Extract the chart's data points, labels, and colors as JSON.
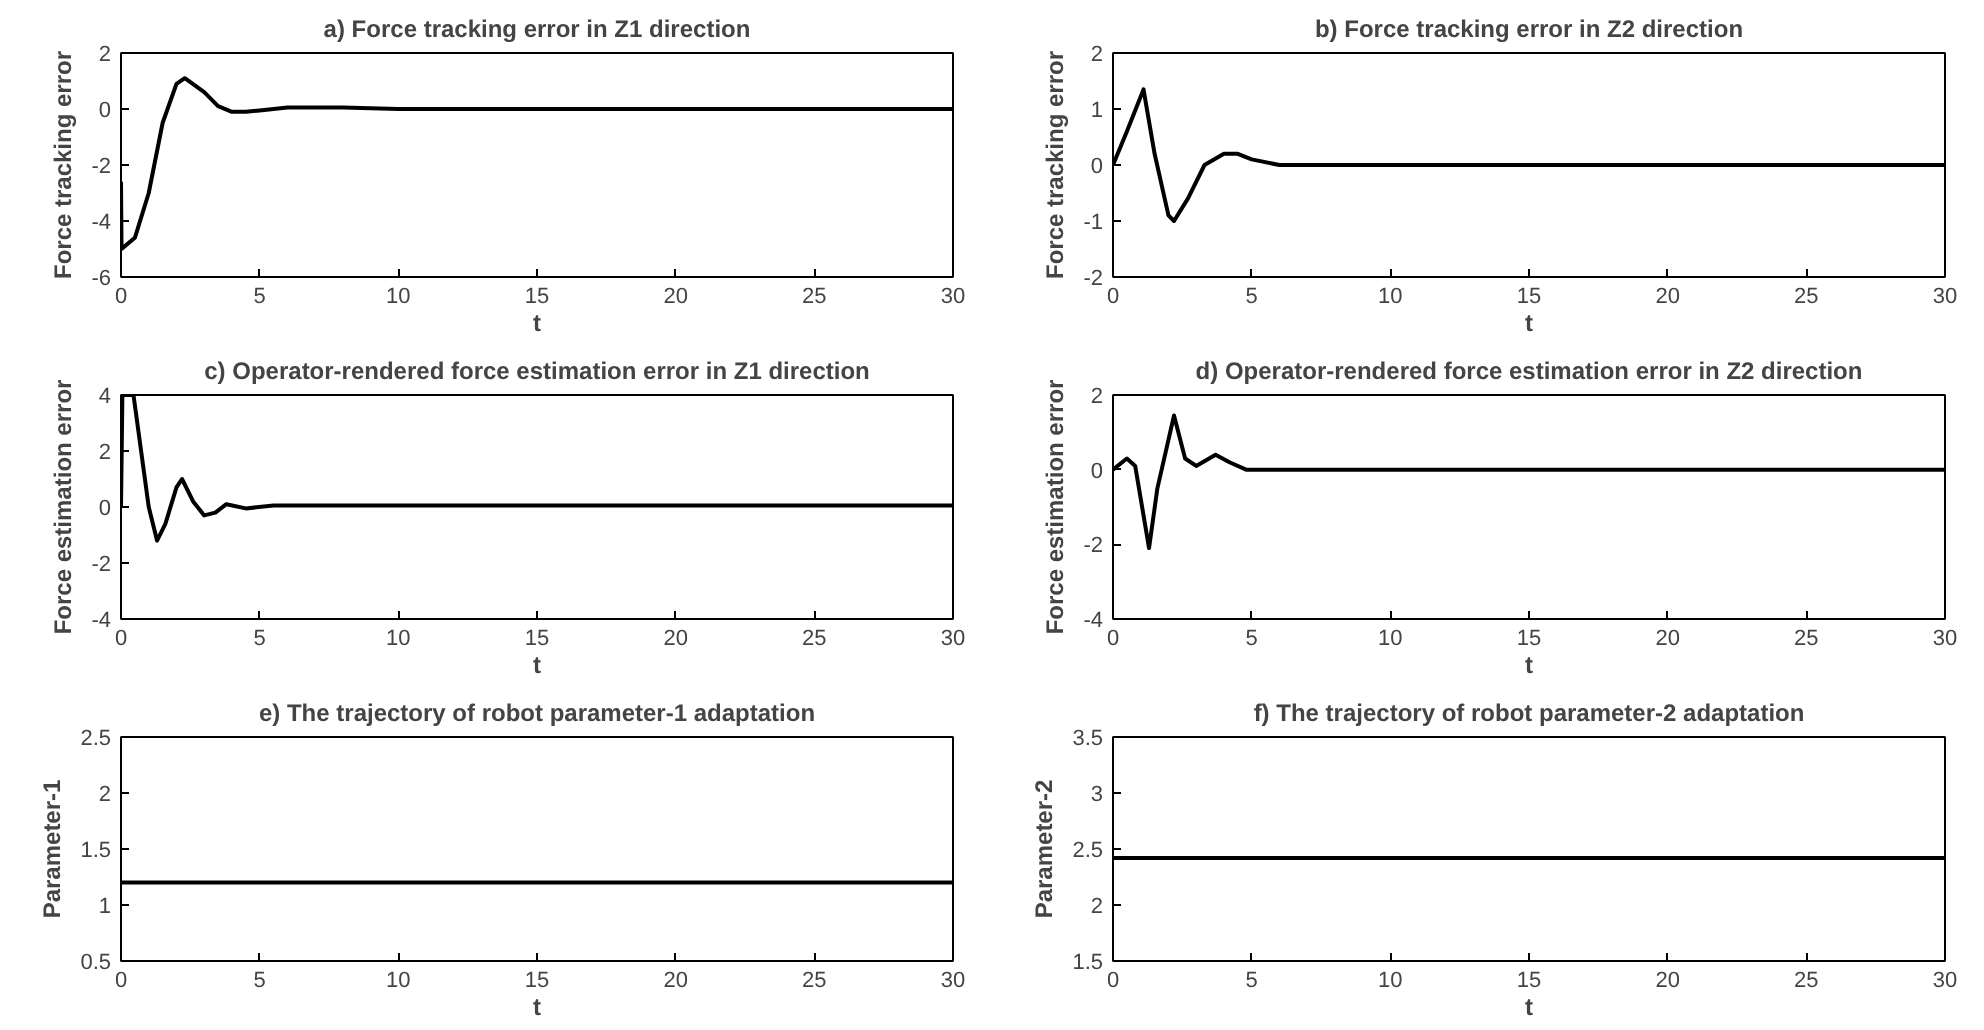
{
  "chart_data": [
    {
      "type": "line",
      "title": "a) Force tracking error in Z1 direction",
      "xlabel": "t",
      "ylabel": "Force tracking error",
      "xlim": [
        0,
        30
      ],
      "ylim": [
        -6,
        2
      ],
      "xticks": [
        0,
        5,
        10,
        15,
        20,
        25,
        30
      ],
      "yticks": [
        -6,
        -4,
        -2,
        0,
        2
      ],
      "grid": false,
      "series": [
        {
          "color": "#000000",
          "x": [
            0,
            0.02,
            0.5,
            1,
            1.5,
            2,
            2.3,
            3,
            3.5,
            4,
            4.5,
            5,
            6,
            8,
            10,
            30
          ],
          "values": [
            -2.6,
            -5,
            -4.6,
            -3,
            -0.5,
            0.9,
            1.1,
            0.6,
            0.1,
            -0.1,
            -0.1,
            -0.05,
            0.05,
            0.05,
            0,
            0
          ]
        }
      ]
    },
    {
      "type": "line",
      "title": "b) Force tracking error in Z2 direction",
      "xlabel": "t",
      "ylabel": "Force tracking error",
      "xlim": [
        0,
        30
      ],
      "ylim": [
        -2,
        2
      ],
      "xticks": [
        0,
        5,
        10,
        15,
        20,
        25,
        30
      ],
      "yticks": [
        -2,
        -1,
        0,
        1,
        2
      ],
      "grid": false,
      "series": [
        {
          "color": "#000000",
          "x": [
            0,
            0.5,
            1.1,
            1.5,
            2,
            2.2,
            2.7,
            3.3,
            4,
            4.5,
            5,
            6,
            30
          ],
          "values": [
            0,
            0.6,
            1.35,
            0.2,
            -0.9,
            -1,
            -0.6,
            0,
            0.2,
            0.2,
            0.1,
            0,
            0
          ]
        }
      ]
    },
    {
      "type": "line",
      "title": "c) Operator-rendered force estimation error in Z1 direction",
      "xlabel": "t",
      "ylabel": "Force estimation error",
      "xlim": [
        0,
        30
      ],
      "ylim": [
        -4,
        4
      ],
      "xticks": [
        0,
        5,
        10,
        15,
        20,
        25,
        30
      ],
      "yticks": [
        -4,
        -2,
        0,
        2,
        4
      ],
      "grid": false,
      "series": [
        {
          "color": "#000000",
          "x": [
            0,
            0.05,
            0.45,
            1,
            1.3,
            1.6,
            2,
            2.2,
            2.6,
            3,
            3.4,
            3.8,
            4.5,
            5.5,
            30
          ],
          "values": [
            0,
            4,
            4,
            0,
            -1.2,
            -0.6,
            0.7,
            1,
            0.2,
            -0.3,
            -0.2,
            0.1,
            -0.05,
            0.05,
            0.05
          ]
        }
      ]
    },
    {
      "type": "line",
      "title": "d) Operator-rendered force estimation error in Z2 direction",
      "xlabel": "t",
      "ylabel": "Force estimation error",
      "xlim": [
        0,
        30
      ],
      "ylim": [
        -4,
        2
      ],
      "xticks": [
        0,
        5,
        10,
        15,
        20,
        25,
        30
      ],
      "yticks": [
        -4,
        -2,
        0,
        2
      ],
      "grid": false,
      "series": [
        {
          "color": "#000000",
          "x": [
            0,
            0.5,
            0.8,
            1.3,
            1.6,
            2.2,
            2.6,
            3,
            3.7,
            4.2,
            4.8,
            30
          ],
          "values": [
            0,
            0.3,
            0.1,
            -2.1,
            -0.5,
            1.45,
            0.3,
            0.1,
            0.4,
            0.2,
            0,
            0
          ]
        }
      ]
    },
    {
      "type": "line",
      "title": "e) The trajectory of robot parameter-1 adaptation",
      "xlabel": "t",
      "ylabel": "Parameter-1",
      "xlim": [
        0,
        30
      ],
      "ylim": [
        0.5,
        2.5
      ],
      "xticks": [
        0,
        5,
        10,
        15,
        20,
        25,
        30
      ],
      "yticks": [
        0.5,
        1,
        1.5,
        2,
        2.5
      ],
      "grid": false,
      "series": [
        {
          "color": "#000000",
          "x": [
            0,
            30
          ],
          "values": [
            1.2,
            1.2
          ]
        }
      ]
    },
    {
      "type": "line",
      "title": "f) The trajectory of robot parameter-2 adaptation",
      "xlabel": "t",
      "ylabel": "Parameter-2",
      "xlim": [
        0,
        30
      ],
      "ylim": [
        1.5,
        3.5
      ],
      "xticks": [
        0,
        5,
        10,
        15,
        20,
        25,
        30
      ],
      "yticks": [
        1.5,
        2,
        2.5,
        3,
        3.5
      ],
      "grid": false,
      "series": [
        {
          "color": "#000000",
          "x": [
            0,
            30
          ],
          "values": [
            2.42,
            2.42
          ]
        }
      ]
    }
  ]
}
